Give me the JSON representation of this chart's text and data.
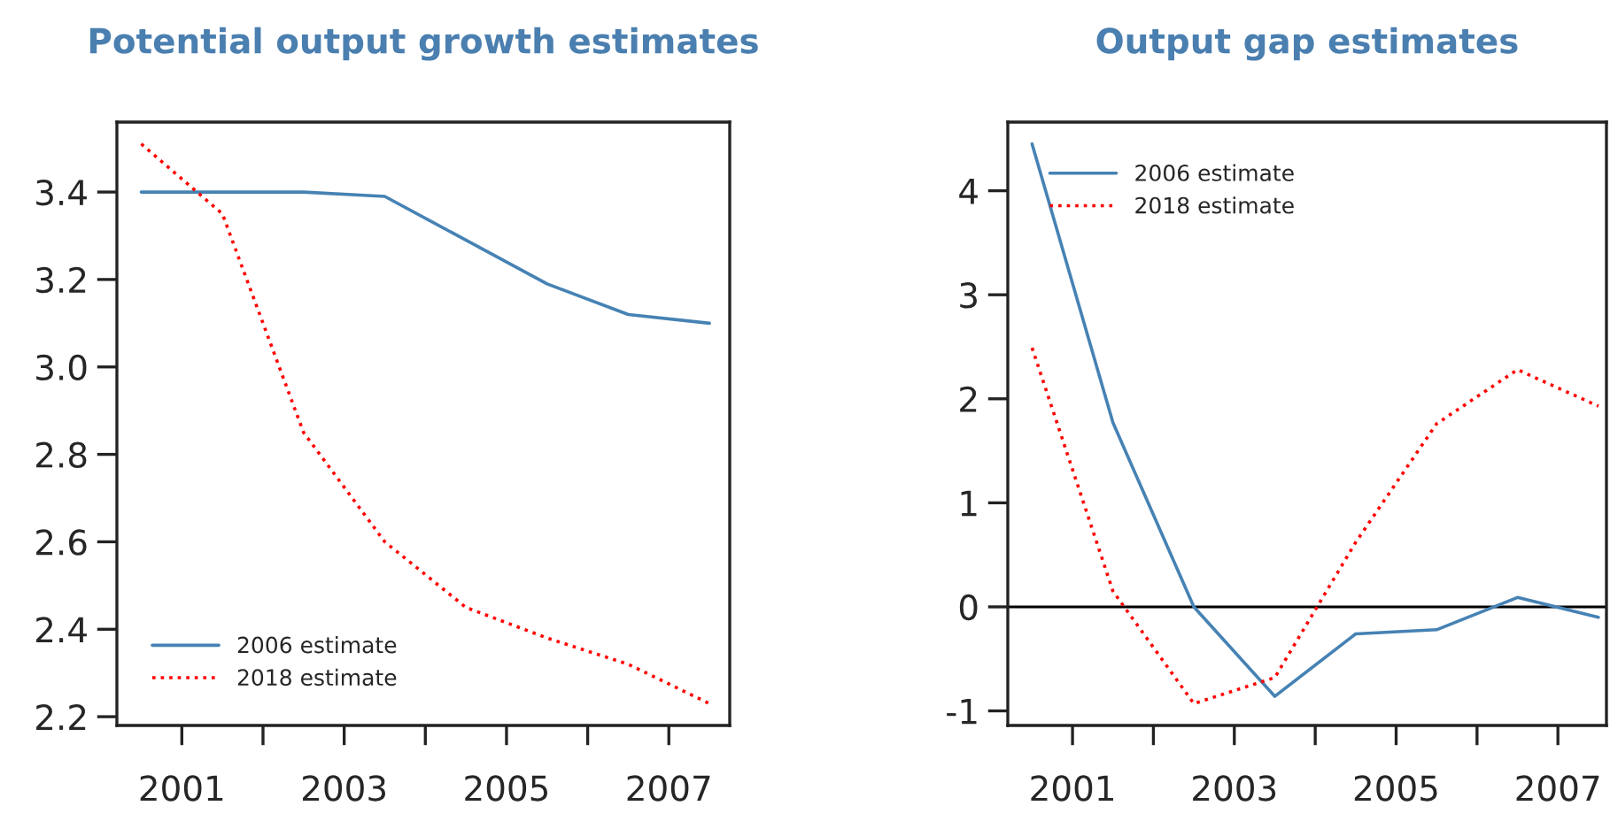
{
  "chart_data": [
    {
      "type": "line",
      "title": "Potential output growth estimates",
      "x": [
        2000.5,
        2001.5,
        2002.5,
        2003.5,
        2004.5,
        2005.5,
        2006.5,
        2007.5
      ],
      "series": [
        {
          "name": "2006 estimate",
          "color": "#4682b4",
          "line_style": "solid",
          "values": [
            3.4,
            3.4,
            3.4,
            3.39,
            3.29,
            3.19,
            3.12,
            3.1
          ]
        },
        {
          "name": "2018 estimate",
          "color": "#ff0000",
          "line_style": "dotted",
          "values": [
            3.51,
            3.35,
            2.85,
            2.6,
            2.45,
            2.38,
            2.32,
            2.23
          ]
        }
      ],
      "xlim": [
        2000.2,
        2007.75
      ],
      "ylim": [
        2.18,
        3.56
      ],
      "xticks": [
        2001,
        {
          "value": 2002,
          "label": null
        },
        2003,
        {
          "value": 2004,
          "label": null
        },
        2005,
        {
          "value": 2006,
          "label": null
        },
        2007
      ],
      "yticks": [
        {
          "value": 2.2,
          "label": "2.2"
        },
        {
          "value": 2.4,
          "label": "2.4"
        },
        {
          "value": 2.6,
          "label": "2.6"
        },
        {
          "value": 2.8,
          "label": "2.8"
        },
        {
          "value": 3.0,
          "label": "3.0"
        },
        {
          "value": 3.2,
          "label": "3.2"
        },
        {
          "value": 3.4,
          "label": "3.4"
        }
      ],
      "legend": "bottom left",
      "grid": false
    },
    {
      "type": "line",
      "title": "Output gap estimates",
      "x": [
        2000.5,
        2001.5,
        2002.5,
        2003.5,
        2004.5,
        2005.5,
        2006.5,
        2007.5
      ],
      "series": [
        {
          "name": "2006 estimate",
          "color": "#4682b4",
          "line_style": "solid",
          "values": [
            4.45,
            1.77,
            0.0,
            -0.86,
            -0.26,
            -0.22,
            0.09,
            -0.1
          ]
        },
        {
          "name": "2018 estimate",
          "color": "#ff0000",
          "line_style": "dotted",
          "values": [
            2.49,
            0.15,
            -0.93,
            -0.68,
            0.62,
            1.76,
            2.28,
            1.93
          ]
        }
      ],
      "xlim": [
        2000.2,
        2007.6
      ],
      "ylim": [
        -1.14,
        4.66
      ],
      "xticks": [
        2001,
        {
          "value": 2002,
          "label": null
        },
        2003,
        {
          "value": 2004,
          "label": null
        },
        2005,
        {
          "value": 2006,
          "label": null
        },
        2007
      ],
      "yticks": [
        -1,
        0,
        1,
        2,
        3,
        4
      ],
      "ref_lines": [
        {
          "axis": "y",
          "value": 0,
          "color": "#000000"
        }
      ],
      "legend": "top left",
      "grid": false
    }
  ]
}
